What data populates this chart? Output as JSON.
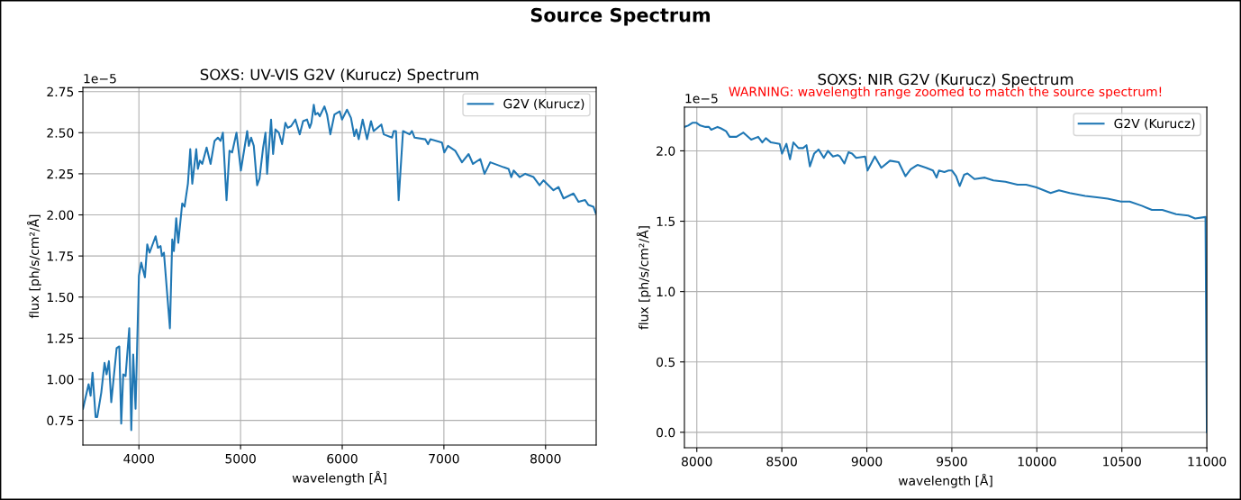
{
  "chart_data": [
    {
      "type": "line",
      "title": "SOXS: UV-VIS G2V (Kurucz) Spectrum",
      "xlabel": "wavelength [Å]",
      "ylabel": "flux [ph/s/cm²/Å]",
      "annotations": [
        "Source Spectrum",
        "1e−5"
      ],
      "xlim": [
        3449,
        8498
      ],
      "xticks": [
        4000,
        5000,
        6000,
        7000,
        8000
      ],
      "ylim": [
        0.6,
        2.775
      ],
      "yticks": [
        {
          "value": 0.75,
          "label": "0.75"
        },
        {
          "value": 1.0,
          "label": "1.00"
        },
        {
          "value": 1.25,
          "label": "1.25"
        },
        {
          "value": 1.5,
          "label": "1.50"
        },
        {
          "value": 1.75,
          "label": "1.75"
        },
        {
          "value": 2.0,
          "label": "2.00"
        },
        {
          "value": 2.25,
          "label": "2.25"
        },
        {
          "value": 2.5,
          "label": "2.50"
        },
        {
          "value": 2.75,
          "label": "2.75"
        }
      ],
      "grid": true,
      "legend": "top right",
      "series": [
        {
          "name": "G2V (Kurucz)",
          "color": "#1f77b4",
          "x": [
            3450,
            3505,
            3525,
            3544,
            3574,
            3590,
            3630,
            3662,
            3682,
            3705,
            3728,
            3781,
            3807,
            3826,
            3846,
            3869,
            3905,
            3925,
            3944,
            3967,
            4000,
            4023,
            4059,
            4082,
            4105,
            4164,
            4187,
            4213,
            4226,
            4246,
            4305,
            4328,
            4344,
            4367,
            4387,
            4426,
            4449,
            4482,
            4505,
            4525,
            4564,
            4580,
            4600,
            4623,
            4666,
            4705,
            4744,
            4777,
            4803,
            4826,
            4862,
            4891,
            4917,
            4960,
            5003,
            5065,
            5081,
            5104,
            5130,
            5163,
            5186,
            5222,
            5245,
            5261,
            5300,
            5320,
            5343,
            5376,
            5408,
            5441,
            5464,
            5497,
            5539,
            5582,
            5615,
            5654,
            5680,
            5697,
            5720,
            5736,
            5759,
            5779,
            5825,
            5851,
            5883,
            5923,
            5975,
            5998,
            6047,
            6086,
            6119,
            6139,
            6162,
            6201,
            6244,
            6283,
            6309,
            6385,
            6408,
            6490,
            6506,
            6529,
            6555,
            6598,
            6663,
            6686,
            6712,
            6817,
            6844,
            6867,
            6981,
            7004,
            7040,
            7112,
            7178,
            7243,
            7286,
            7358,
            7400,
            7456,
            7587,
            7636,
            7663,
            7686,
            7745,
            7800,
            7882,
            7941,
            7980,
            8045,
            8078,
            8127,
            8177,
            8275,
            8324,
            8389,
            8422,
            8471,
            8494
          ],
          "values": [
            0.82,
            0.97,
            0.9,
            1.04,
            0.77,
            0.77,
            0.92,
            1.1,
            1.03,
            1.11,
            0.86,
            1.19,
            1.2,
            0.73,
            1.03,
            1.02,
            1.31,
            0.69,
            1.15,
            0.82,
            1.63,
            1.71,
            1.62,
            1.82,
            1.77,
            1.87,
            1.8,
            1.81,
            1.75,
            1.77,
            1.31,
            1.85,
            1.78,
            1.98,
            1.83,
            2.07,
            2.05,
            2.19,
            2.4,
            2.19,
            2.4,
            2.28,
            2.33,
            2.31,
            2.41,
            2.31,
            2.45,
            2.47,
            2.45,
            2.5,
            2.09,
            2.39,
            2.38,
            2.5,
            2.27,
            2.51,
            2.42,
            2.47,
            2.42,
            2.18,
            2.22,
            2.41,
            2.5,
            2.25,
            2.58,
            2.37,
            2.52,
            2.5,
            2.43,
            2.56,
            2.53,
            2.54,
            2.58,
            2.49,
            2.57,
            2.58,
            2.53,
            2.56,
            2.67,
            2.61,
            2.62,
            2.6,
            2.66,
            2.61,
            2.49,
            2.61,
            2.63,
            2.58,
            2.64,
            2.59,
            2.48,
            2.52,
            2.46,
            2.58,
            2.46,
            2.57,
            2.51,
            2.55,
            2.49,
            2.47,
            2.51,
            2.51,
            2.09,
            2.51,
            2.49,
            2.51,
            2.47,
            2.46,
            2.43,
            2.46,
            2.44,
            2.38,
            2.42,
            2.39,
            2.32,
            2.37,
            2.31,
            2.34,
            2.25,
            2.32,
            2.29,
            2.28,
            2.23,
            2.27,
            2.23,
            2.25,
            2.23,
            2.18,
            2.21,
            2.17,
            2.15,
            2.17,
            2.1,
            2.13,
            2.08,
            2.09,
            2.06,
            2.05,
            2.01
          ]
        }
      ]
    },
    {
      "type": "line",
      "title": "SOXS: NIR G2V (Kurucz) Spectrum",
      "subtitle": "WARNING: wavelength range zoomed to match the source spectrum!",
      "xlabel": "wavelength [Å]",
      "ylabel": "flux [ph/s/cm²/Å]",
      "annotations": [
        "1e−5"
      ],
      "xlim": [
        7927,
        11000
      ],
      "xticks": [
        8000,
        8500,
        9000,
        9500,
        10000,
        10500,
        11000
      ],
      "ylim": [
        -0.11,
        2.31
      ],
      "yticks": [
        {
          "value": 0.0,
          "label": "0.0"
        },
        {
          "value": 0.5,
          "label": "0.5"
        },
        {
          "value": 1.0,
          "label": "1.0"
        },
        {
          "value": 1.5,
          "label": "1.5"
        },
        {
          "value": 2.0,
          "label": "2.0"
        }
      ],
      "grid": true,
      "legend": "top right",
      "series": [
        {
          "name": "G2V (Kurucz)",
          "color": "#1f77b4",
          "x": [
            7927,
            7949,
            7976,
            7996,
            8020,
            8051,
            8071,
            8085,
            8122,
            8142,
            8172,
            8193,
            8233,
            8274,
            8320,
            8361,
            8385,
            8406,
            8436,
            8487,
            8501,
            8527,
            8548,
            8568,
            8598,
            8625,
            8645,
            8665,
            8690,
            8716,
            8747,
            8771,
            8801,
            8828,
            8842,
            8868,
            8892,
            8913,
            8937,
            8990,
            9004,
            9047,
            9085,
            9136,
            9187,
            9227,
            9258,
            9298,
            9349,
            9389,
            9410,
            9424,
            9456,
            9481,
            9501,
            9525,
            9546,
            9572,
            9592,
            9633,
            9694,
            9744,
            9815,
            9886,
            9937,
            9998,
            10081,
            10130,
            10193,
            10284,
            10353,
            10416,
            10495,
            10546,
            10617,
            10677,
            10738,
            10819,
            10890,
            10931,
            10992,
            11000
          ],
          "values": [
            2.17,
            2.18,
            2.2,
            2.2,
            2.18,
            2.17,
            2.17,
            2.15,
            2.17,
            2.16,
            2.14,
            2.1,
            2.1,
            2.13,
            2.08,
            2.1,
            2.06,
            2.09,
            2.06,
            2.05,
            1.98,
            2.05,
            1.94,
            2.06,
            2.02,
            2.02,
            2.04,
            1.89,
            1.98,
            2.01,
            1.95,
            2.0,
            1.96,
            1.97,
            1.96,
            1.91,
            1.99,
            1.98,
            1.95,
            1.96,
            1.86,
            1.96,
            1.88,
            1.93,
            1.92,
            1.82,
            1.87,
            1.9,
            1.88,
            1.86,
            1.81,
            1.86,
            1.85,
            1.86,
            1.86,
            1.82,
            1.75,
            1.83,
            1.84,
            1.8,
            1.81,
            1.79,
            1.78,
            1.76,
            1.76,
            1.74,
            1.7,
            1.72,
            1.7,
            1.68,
            1.67,
            1.66,
            1.64,
            1.64,
            1.61,
            1.58,
            1.58,
            1.55,
            1.54,
            1.52,
            1.53,
            0.0
          ]
        }
      ]
    }
  ]
}
